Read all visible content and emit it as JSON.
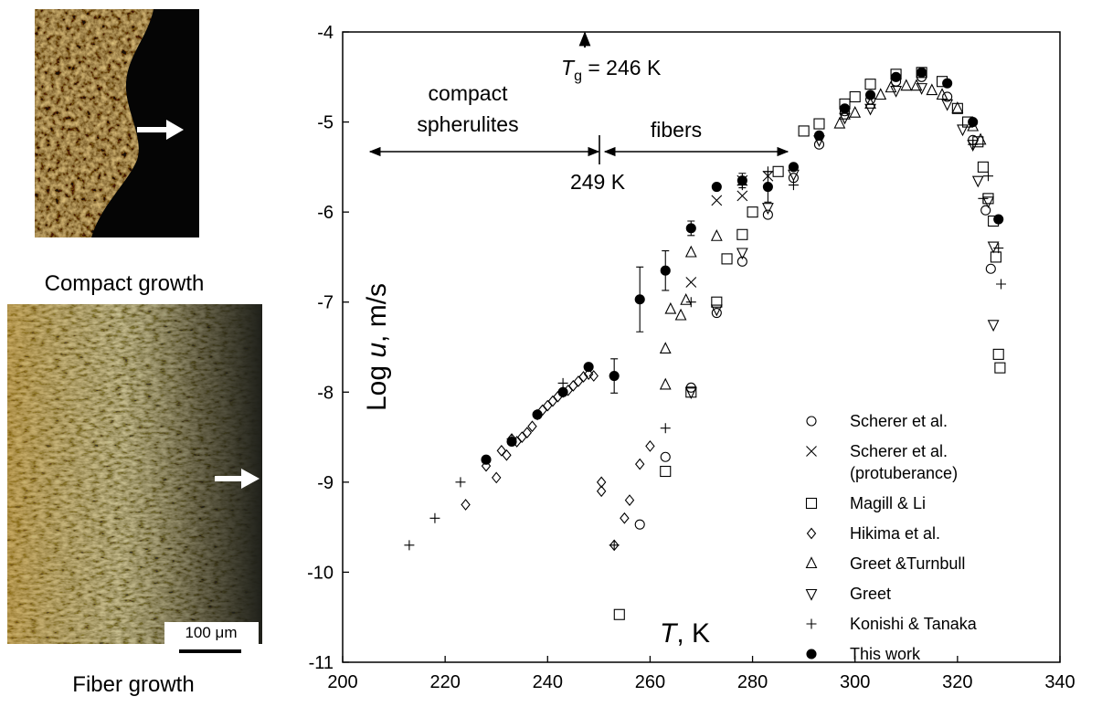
{
  "chart_data": {
    "type": "scatter",
    "xlabel": [
      "T",
      ", K"
    ],
    "ylabel": [
      "Log ",
      "u",
      ", m/s"
    ],
    "xlim": [
      200,
      340
    ],
    "ylim": [
      -11,
      -4
    ],
    "xticks": [
      200,
      220,
      240,
      260,
      280,
      300,
      320,
      340
    ],
    "yticks": [
      -11,
      -10,
      -9,
      -8,
      -7,
      -6,
      -5,
      -4
    ],
    "legend": "lower right",
    "annotations": [
      "compact",
      "spherulites",
      "fibers",
      "249 K"
    ],
    "tg_label": [
      "T",
      "g",
      " = 246 K"
    ],
    "series": [
      {
        "name": "Scherer et al.",
        "marker": "circle",
        "filled": false,
        "color": "#000000",
        "x": [
          258,
          263,
          268,
          273,
          278,
          283,
          288,
          293,
          298,
          303,
          308,
          313,
          318,
          323,
          325.5,
          326.5
        ],
        "values": [
          -9.47,
          -8.72,
          -7.95,
          -7.12,
          -6.55,
          -6.03,
          -5.62,
          -5.25,
          -4.88,
          -4.75,
          -4.55,
          -4.5,
          -4.72,
          -5.2,
          -5.98,
          -6.63
        ]
      },
      {
        "name": "Scherer et al.\n(protuberance)",
        "marker": "cross",
        "filled": false,
        "color": "#000000",
        "x": [
          268,
          273,
          278,
          278,
          283
        ],
        "values": [
          -6.78,
          -5.87,
          -5.82,
          -5.65,
          -5.6
        ]
      },
      {
        "name": "Magill & Li",
        "marker": "square",
        "filled": false,
        "color": "#000000",
        "x": [
          254,
          263,
          268,
          273,
          275,
          278,
          280,
          285,
          290,
          293,
          298,
          300,
          303,
          308,
          313,
          317,
          320,
          322,
          324,
          325,
          326,
          327,
          327.5,
          328,
          328.3
        ],
        "values": [
          -10.47,
          -8.88,
          -8.0,
          -7.0,
          -6.52,
          -6.25,
          -6.0,
          -5.55,
          -5.1,
          -5.02,
          -4.8,
          -4.72,
          -4.58,
          -4.47,
          -4.45,
          -4.55,
          -4.85,
          -5.0,
          -5.22,
          -5.5,
          -5.85,
          -6.1,
          -6.5,
          -7.58,
          -7.73
        ]
      },
      {
        "name": "Hikima et al.",
        "marker": "diamond",
        "filled": false,
        "color": "#000000",
        "x": [
          224,
          228,
          230,
          231,
          232,
          233,
          234,
          235,
          236,
          237,
          238,
          239,
          240,
          241,
          242,
          243,
          244,
          245,
          246,
          247,
          248,
          249,
          250.5,
          250.5,
          253,
          255,
          256,
          258,
          260
        ],
        "values": [
          -9.25,
          -8.82,
          -8.95,
          -8.65,
          -8.7,
          -8.52,
          -8.55,
          -8.5,
          -8.45,
          -8.38,
          -8.25,
          -8.2,
          -8.15,
          -8.1,
          -8.05,
          -8.0,
          -7.98,
          -7.93,
          -7.88,
          -7.83,
          -7.8,
          -7.82,
          -9.0,
          -9.1,
          -9.7,
          -9.4,
          -9.2,
          -8.8,
          -8.6
        ]
      },
      {
        "name": "Greet &Turnbull",
        "marker": "triangle-up",
        "filled": false,
        "color": "#000000",
        "x": [
          263,
          263,
          264,
          266,
          267,
          268,
          273,
          297,
          298,
          300,
          303,
          305,
          307,
          310,
          312,
          315,
          317,
          320,
          323,
          324.5
        ],
        "values": [
          -7.92,
          -7.52,
          -7.08,
          -7.15,
          -6.98,
          -6.45,
          -6.27,
          -5.02,
          -4.92,
          -4.9,
          -4.8,
          -4.7,
          -4.62,
          -4.6,
          -4.6,
          -4.65,
          -4.7,
          -4.85,
          -5.05,
          -5.2
        ]
      },
      {
        "name": "Greet",
        "marker": "triangle-down",
        "filled": false,
        "color": "#000000",
        "x": [
          268,
          273,
          278,
          283,
          288,
          293,
          298,
          303,
          308,
          313,
          318,
          321,
          323,
          324,
          326,
          327,
          327
        ],
        "values": [
          -8.0,
          -7.08,
          -6.45,
          -5.95,
          -5.58,
          -5.2,
          -4.95,
          -4.85,
          -4.65,
          -4.62,
          -4.8,
          -5.08,
          -5.25,
          -5.65,
          -5.88,
          -6.38,
          -7.25
        ]
      },
      {
        "name": "Konishi & Tanaka",
        "marker": "plus",
        "filled": false,
        "color": "#000000",
        "x": [
          213,
          218,
          223,
          233,
          243,
          253,
          263,
          268,
          278,
          283,
          288,
          323,
          325,
          326,
          328,
          328.5
        ],
        "values": [
          -9.7,
          -9.4,
          -9.0,
          -8.52,
          -7.9,
          -9.7,
          -8.4,
          -7.0,
          -5.7,
          -5.55,
          -5.7,
          -5.25,
          -5.85,
          -5.6,
          -6.4,
          -6.8
        ]
      },
      {
        "name": "This work",
        "marker": "circle",
        "filled": true,
        "color": "#000000",
        "x": [
          228,
          233,
          238,
          243,
          248,
          253,
          258,
          263,
          268,
          273,
          278,
          283,
          288,
          293,
          298,
          303,
          308,
          313,
          318,
          323,
          328
        ],
        "values": [
          -8.75,
          -8.55,
          -8.25,
          -8.0,
          -7.72,
          -7.82,
          -6.97,
          -6.65,
          -6.18,
          -5.72,
          -5.65,
          -5.72,
          -5.5,
          -5.15,
          -4.85,
          -4.7,
          -4.5,
          -4.45,
          -4.57,
          -5.0,
          -6.08
        ],
        "errors": [
          null,
          null,
          null,
          null,
          null,
          0.19,
          0.36,
          0.22,
          0.08,
          null,
          0.08,
          0.17,
          null,
          null,
          null,
          null,
          null,
          null,
          null,
          null,
          null
        ]
      }
    ]
  },
  "panels": [
    {
      "caption": "Compact growth"
    },
    {
      "caption": "Fiber growth",
      "scale_bar": "100 μm"
    }
  ]
}
